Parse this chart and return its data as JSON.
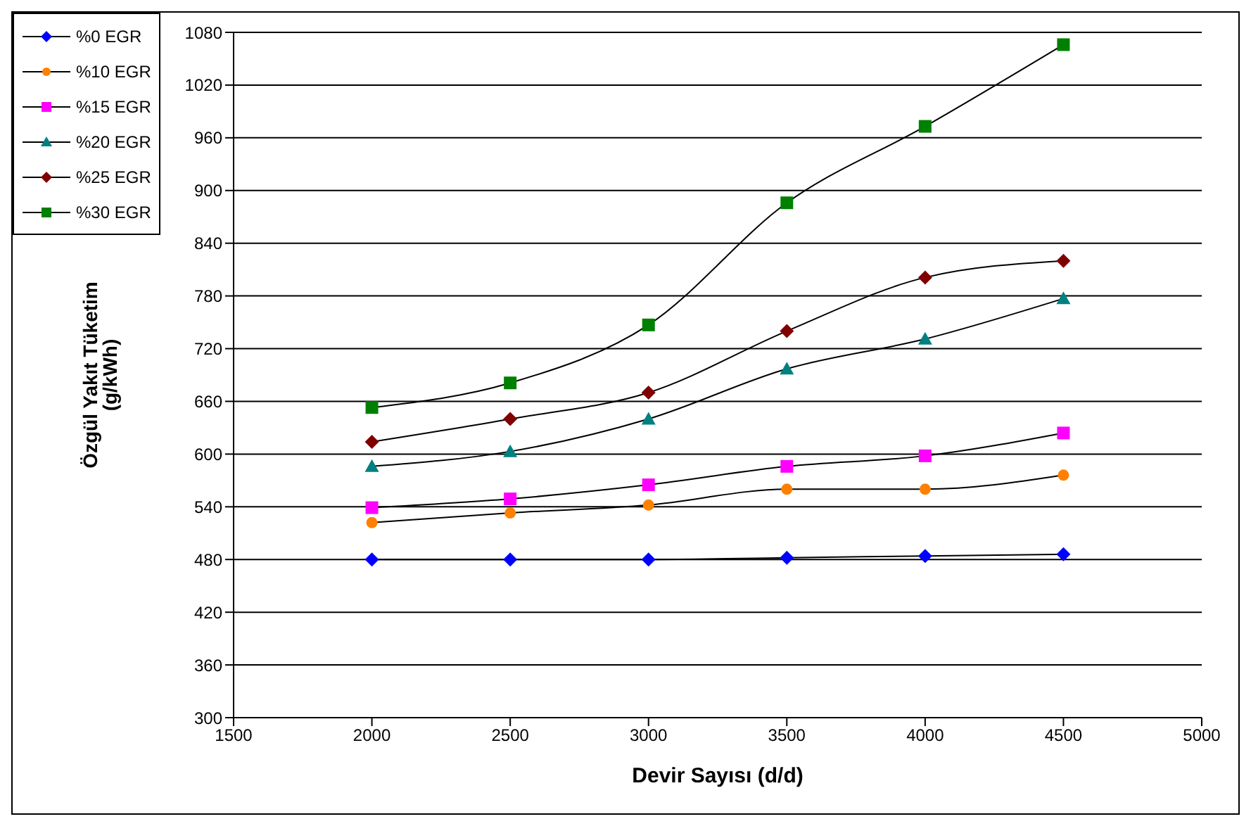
{
  "chart_data": {
    "type": "line",
    "xlabel": "Devir Sayısı (d/d)",
    "ylabel": "Özgül Yakıt Tüketim (g/kWh)",
    "x": [
      2000,
      2500,
      3000,
      3500,
      4000,
      4500
    ],
    "xlim": [
      1500,
      5000
    ],
    "xticks": [
      1500,
      2000,
      2500,
      3000,
      3500,
      4000,
      4500,
      5000
    ],
    "ylim": [
      300,
      1080
    ],
    "yticks": [
      300,
      360,
      420,
      480,
      540,
      600,
      660,
      720,
      780,
      840,
      900,
      960,
      1020,
      1080
    ],
    "grid": "y",
    "legend": "top left",
    "series": [
      {
        "name": "%0 EGR",
        "color": "#0000ff",
        "marker": "diamond",
        "values": [
          480,
          480,
          480,
          482,
          484,
          486
        ]
      },
      {
        "name": "%10 EGR",
        "color": "#ff8000",
        "marker": "circle",
        "values": [
          522,
          533,
          542,
          560,
          560,
          576
        ]
      },
      {
        "name": "%15 EGR",
        "color": "#ff00ff",
        "marker": "square",
        "values": [
          539,
          549,
          565,
          586,
          598,
          624
        ]
      },
      {
        "name": "%20 EGR",
        "color": "#008080",
        "marker": "triangle",
        "values": [
          586,
          603,
          640,
          697,
          731,
          777
        ]
      },
      {
        "name": "%25 EGR",
        "color": "#800000",
        "marker": "diamond",
        "values": [
          614,
          640,
          670,
          740,
          801,
          820
        ]
      },
      {
        "name": "%30 EGR",
        "color": "#008000",
        "marker": "square",
        "values": [
          653,
          681,
          747,
          886,
          973,
          1066
        ]
      }
    ]
  }
}
